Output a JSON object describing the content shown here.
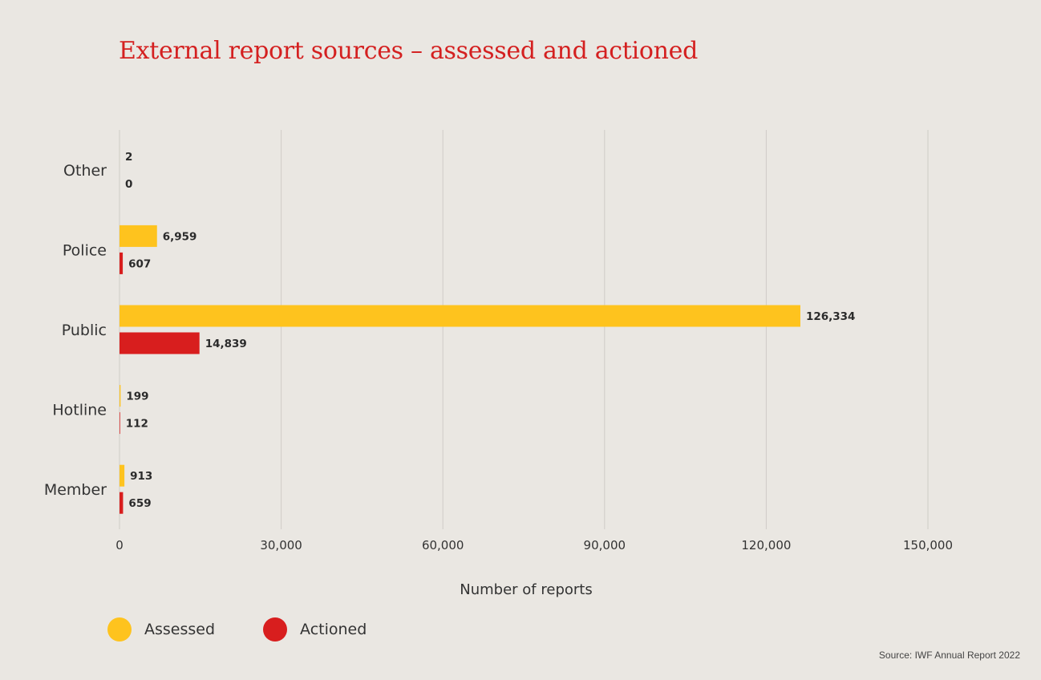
{
  "chart_data": {
    "type": "bar",
    "orientation": "horizontal",
    "title": "External report sources – assessed and actioned",
    "xlabel": "Number of reports",
    "ylabel": "",
    "categories": [
      "Other",
      "Police",
      "Public",
      "Hotline",
      "Member"
    ],
    "series": [
      {
        "name": "Assessed",
        "color": "#fec31e",
        "values": [
          2,
          6959,
          126334,
          199,
          913
        ],
        "labels": [
          "2",
          "6,959",
          "126,334",
          "199",
          "913"
        ]
      },
      {
        "name": "Actioned",
        "color": "#d81e1e",
        "values": [
          0,
          607,
          14839,
          112,
          659
        ],
        "labels": [
          "0",
          "607",
          "14,839",
          "112",
          "659"
        ]
      }
    ],
    "xlim": [
      0,
      150000
    ],
    "xticks": [
      0,
      30000,
      60000,
      90000,
      120000,
      150000
    ],
    "xtick_labels": [
      "0",
      "30,000",
      "60,000",
      "90,000",
      "120,000",
      "150,000"
    ],
    "grid": true,
    "legend_position": "bottom-left"
  },
  "source_note": "Source: IWF Annual Report 2022"
}
